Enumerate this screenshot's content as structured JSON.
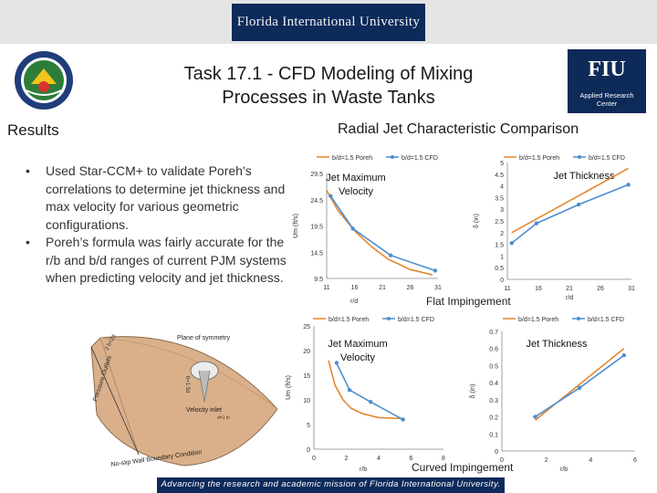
{
  "banner": {
    "university": "Florida International University"
  },
  "title": {
    "line1": "Task 17.1 - CFD Modeling of Mixing",
    "line2": "Processes in Waste Tanks"
  },
  "logos": {
    "fiu_big": "FIU",
    "fiu_small_line1": "Applied Research",
    "fiu_small_line2": "Center"
  },
  "section": {
    "results": "Results",
    "comparison": "Radial Jet Characteristic Comparison"
  },
  "bullets": [
    "Used Star-CCM+ to validate Poreh’s correlations to determine jet thickness and max velocity for various geometric configurations.",
    "Poreh’s formula was fairly accurate for the r/b and b/d ranges of current PJM systems when predicting velocity and jet thickness."
  ],
  "labels": {
    "flat": "Flat Impingement",
    "curved": "Curved Impingement"
  },
  "footer": "Advancing the research and academic mission of Florida International University.",
  "diagram": {
    "plane_of_symmetry": "Plane of symmetry",
    "velocity_inlet": "Velocity inlet",
    "no_slip": "No-slip Wall Boundary Condition",
    "pressure_outlets": "Pressure Outlets",
    "inlet_dim": "d=1 in",
    "dim_left": "2 b=2d",
    "dim_mid": "b=1.5d"
  },
  "colors": {
    "poreh": "#e2862f",
    "cfd": "#4e8ed0",
    "navy": "#0c2a5a"
  },
  "chart_data": [
    {
      "type": "line",
      "title": "Jet Maximum Velocity",
      "subtitle": "Flat",
      "xlabel": "r/d",
      "ylabel": "Um (ft/s)",
      "xlim": [
        11,
        31
      ],
      "ylim": [
        9.5,
        29.5
      ],
      "xticks": [
        "11",
        "16",
        "21",
        "26",
        "31"
      ],
      "yticks": [
        "29.5",
        "24.5",
        "19.5",
        "14.5",
        "9.5"
      ],
      "series": [
        {
          "name": "b/d=1.5 Poreh",
          "x": [
            11,
            13,
            16,
            19,
            22,
            26,
            30
          ],
          "y": [
            26.3,
            22.5,
            18.6,
            15.6,
            13.2,
            11.2,
            10.2
          ]
        },
        {
          "name": "b/d=1.5 CFD",
          "x": [
            11.7,
            15.7,
            22.5,
            30.5
          ],
          "y": [
            25.2,
            19.0,
            13.9,
            11.0
          ]
        }
      ]
    },
    {
      "type": "line",
      "title": "Jet Thickness",
      "subtitle": "Flat",
      "xlabel": "r/d",
      "ylabel": "δ (in)",
      "xlim": [
        11,
        31
      ],
      "ylim": [
        0,
        5
      ],
      "xticks": [
        "11",
        "16",
        "21",
        "26",
        "31"
      ],
      "yticks": [
        "5",
        "4.5",
        "4",
        "3.5",
        "3",
        "2.5",
        "2",
        "1.5",
        "1",
        "0.5",
        "0"
      ],
      "series": [
        {
          "name": "b/d=1.5 Poreh",
          "x": [
            11.7,
            30.5
          ],
          "y": [
            2.0,
            4.75
          ]
        },
        {
          "name": "b/d=1.5 CFD",
          "x": [
            11.7,
            15.7,
            22.5,
            30.5
          ],
          "y": [
            1.55,
            2.4,
            3.2,
            4.05
          ]
        }
      ]
    },
    {
      "type": "line",
      "title": "Jet Maximum Velocity",
      "subtitle": "Curved",
      "xlabel": "r/b",
      "ylabel": "Um (ft/s)",
      "xlim": [
        0,
        8
      ],
      "ylim": [
        0,
        25
      ],
      "xticks": [
        "0",
        "2",
        "4",
        "6",
        "8"
      ],
      "yticks": [
        "25",
        "20",
        "15",
        "10",
        "5",
        "0"
      ],
      "series": [
        {
          "name": "b/d=1.5 Poreh",
          "x": [
            0.9,
            1.3,
            1.8,
            2.3,
            3.0,
            4.0,
            5.5
          ],
          "y": [
            18.0,
            13.0,
            10.0,
            8.3,
            7.2,
            6.4,
            6.2
          ]
        },
        {
          "name": "b/d=1.5 CFD",
          "x": [
            1.4,
            2.2,
            3.5,
            5.5
          ],
          "y": [
            17.5,
            12.0,
            9.6,
            6.0
          ]
        }
      ]
    },
    {
      "type": "line",
      "title": "Jet Thickness",
      "subtitle": "Curved",
      "xlabel": "r/b",
      "ylabel": "δ (in)",
      "xlim": [
        0,
        6
      ],
      "ylim": [
        0,
        0.7
      ],
      "xticks": [
        "0",
        "2",
        "4",
        "6"
      ],
      "yticks": [
        "0.7",
        "0.6",
        "0.5",
        "0.4",
        "0.3",
        "0.2",
        "0.1",
        "0"
      ],
      "series": [
        {
          "name": "b/d=1.5 Poreh",
          "x": [
            1.5,
            5.5
          ],
          "y": [
            0.18,
            0.6
          ]
        },
        {
          "name": "b/d=1.5 CFD",
          "x": [
            1.5,
            3.5,
            5.5
          ],
          "y": [
            0.2,
            0.37,
            0.56
          ]
        }
      ]
    }
  ]
}
